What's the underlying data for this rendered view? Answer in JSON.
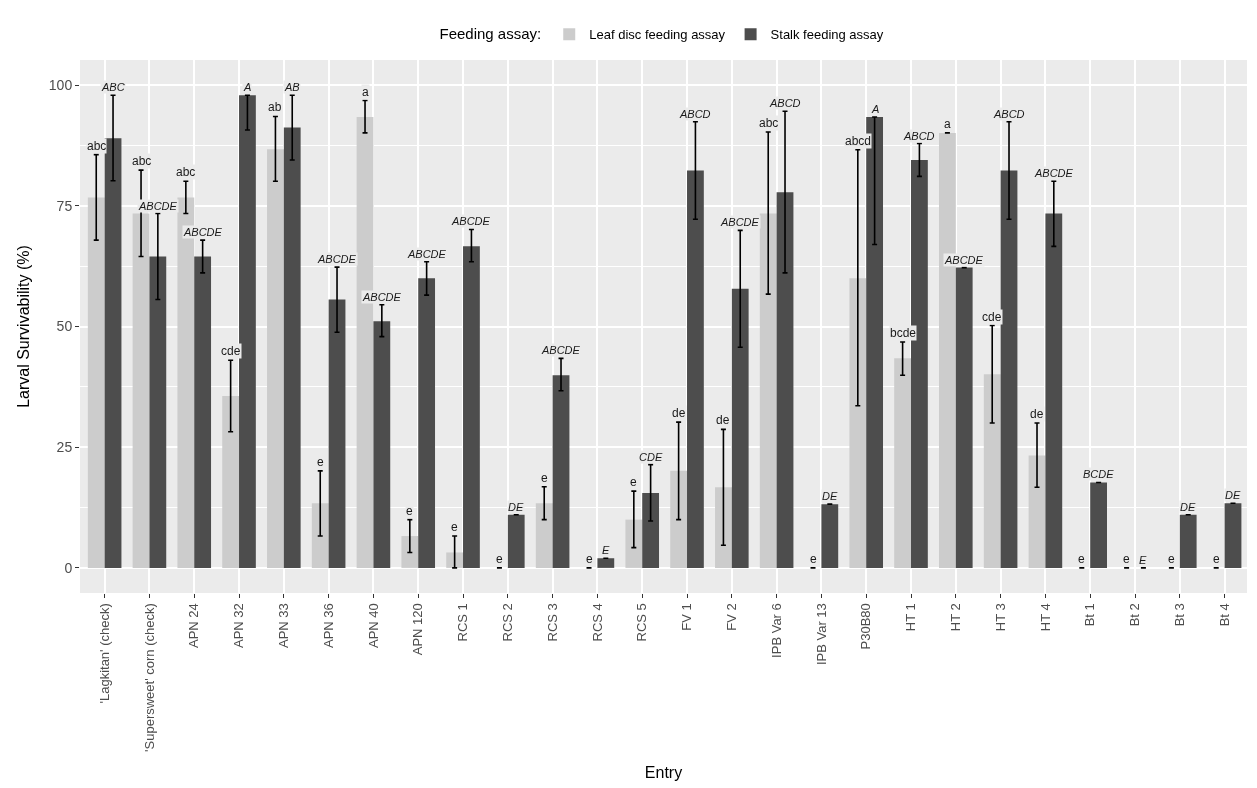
{
  "chart_data": {
    "type": "bar",
    "xlabel": "Entry",
    "ylabel": "Larval Survivability (%)",
    "legend_title": "Feeding assay:",
    "legend": "top",
    "categories": [
      "'Lagkitan' (check)",
      "'Supersweet' corn (check)",
      "APN 24",
      "APN 32",
      "APN 33",
      "APN 36",
      "APN 40",
      "APN 120",
      "RCS 1",
      "RCS 2",
      "RCS 3",
      "RCS 4",
      "RCS 5",
      "FV 1",
      "FV 2",
      "IPB Var 6",
      "IPB Var 13",
      "P30B80",
      "HT 1",
      "HT 2",
      "HT 3",
      "HT 4",
      "Bt 1",
      "Bt 2",
      "Bt 3",
      "Bt 4"
    ],
    "series": [
      {
        "name": "Leaf disc feeding assay",
        "color": "#cccccc",
        "values": [
          76.7,
          73.4,
          76.7,
          35.6,
          86.7,
          13.4,
          93.4,
          6.6,
          3.2,
          0,
          13.4,
          0,
          10.0,
          20.1,
          16.7,
          73.4,
          0,
          60.0,
          43.4,
          90.1,
          40.1,
          23.3,
          0,
          0,
          0,
          0
        ],
        "errors": [
          [
            67.9,
            85.6
          ],
          [
            64.5,
            82.4
          ],
          [
            73.4,
            80.1
          ],
          [
            28.2,
            43.0
          ],
          [
            80.1,
            93.5
          ],
          [
            6.6,
            20.1
          ],
          [
            90.1,
            96.8
          ],
          [
            3.2,
            10.0
          ],
          [
            0,
            6.6
          ],
          [
            0,
            0
          ],
          [
            10.0,
            16.8
          ],
          [
            0,
            0
          ],
          [
            4.2,
            15.9
          ],
          [
            10.0,
            30.2
          ],
          [
            4.7,
            28.7
          ],
          [
            56.7,
            90.3
          ],
          [
            0,
            0
          ],
          [
            33.6,
            86.6
          ],
          [
            39.9,
            46.8
          ],
          [
            90.1,
            90.1
          ],
          [
            30.0,
            50.2
          ],
          [
            16.7,
            30.0
          ],
          [
            0,
            0
          ],
          [
            0,
            0
          ],
          [
            0,
            0
          ],
          [
            0,
            0
          ]
        ]
      },
      {
        "name": "Stalk feeding assay",
        "color": "#4d4d4d",
        "values": [
          89.0,
          64.5,
          64.5,
          97.9,
          91.2,
          55.6,
          51.1,
          60.0,
          66.6,
          11.0,
          39.9,
          2.0,
          15.5,
          82.3,
          57.8,
          77.8,
          13.2,
          93.4,
          84.5,
          62.2,
          82.3,
          73.4,
          17.7,
          0,
          11.0,
          13.4
        ],
        "errors": [
          [
            80.2,
            97.9
          ],
          [
            55.6,
            73.4
          ],
          [
            61.1,
            67.9
          ],
          [
            90.7,
            97.9
          ],
          [
            84.5,
            97.9
          ],
          [
            48.8,
            62.3
          ],
          [
            47.9,
            54.5
          ],
          [
            56.5,
            63.4
          ],
          [
            63.4,
            70.1
          ],
          [
            11.0,
            11.0
          ],
          [
            36.7,
            43.4
          ],
          [
            2.0,
            2.0
          ],
          [
            9.7,
            21.4
          ],
          [
            72.2,
            92.4
          ],
          [
            45.7,
            69.9
          ],
          [
            61.1,
            94.6
          ],
          [
            13.2,
            13.2
          ],
          [
            67.0,
            93.4
          ],
          [
            81.1,
            87.9
          ],
          [
            62.2,
            62.2
          ],
          [
            72.2,
            92.4
          ],
          [
            66.6,
            80.1
          ],
          [
            17.7,
            17.7
          ],
          [
            0,
            0
          ],
          [
            11.0,
            11.0
          ],
          [
            13.4,
            13.4
          ]
        ]
      }
    ],
    "annotations": [
      "abc",
      "ABC",
      "abc",
      "ABCDE",
      "abc",
      "ABCDE",
      "cde",
      "A",
      "ab",
      "AB",
      "e",
      "ABCDE",
      "a",
      "ABCDE",
      "e",
      "ABCDE",
      "e",
      "ABCDE",
      "e",
      "DE",
      "e",
      "ABCDE",
      "e",
      "E",
      "e",
      "CDE",
      "de",
      "ABCD",
      "de",
      "ABCDE",
      "abc",
      "ABCD",
      "e",
      "DE",
      "abcd",
      "A",
      "bcde",
      "ABCD",
      "a",
      "ABCDE",
      "cde",
      "ABCD",
      "de",
      "ABCDE",
      "e",
      "BCDE",
      "e",
      "E",
      "e",
      "DE",
      "e",
      "DE"
    ],
    "ylim": [
      -5.2,
      105.2
    ],
    "yticks": [
      0,
      25,
      50,
      75,
      100
    ],
    "grid": true
  }
}
